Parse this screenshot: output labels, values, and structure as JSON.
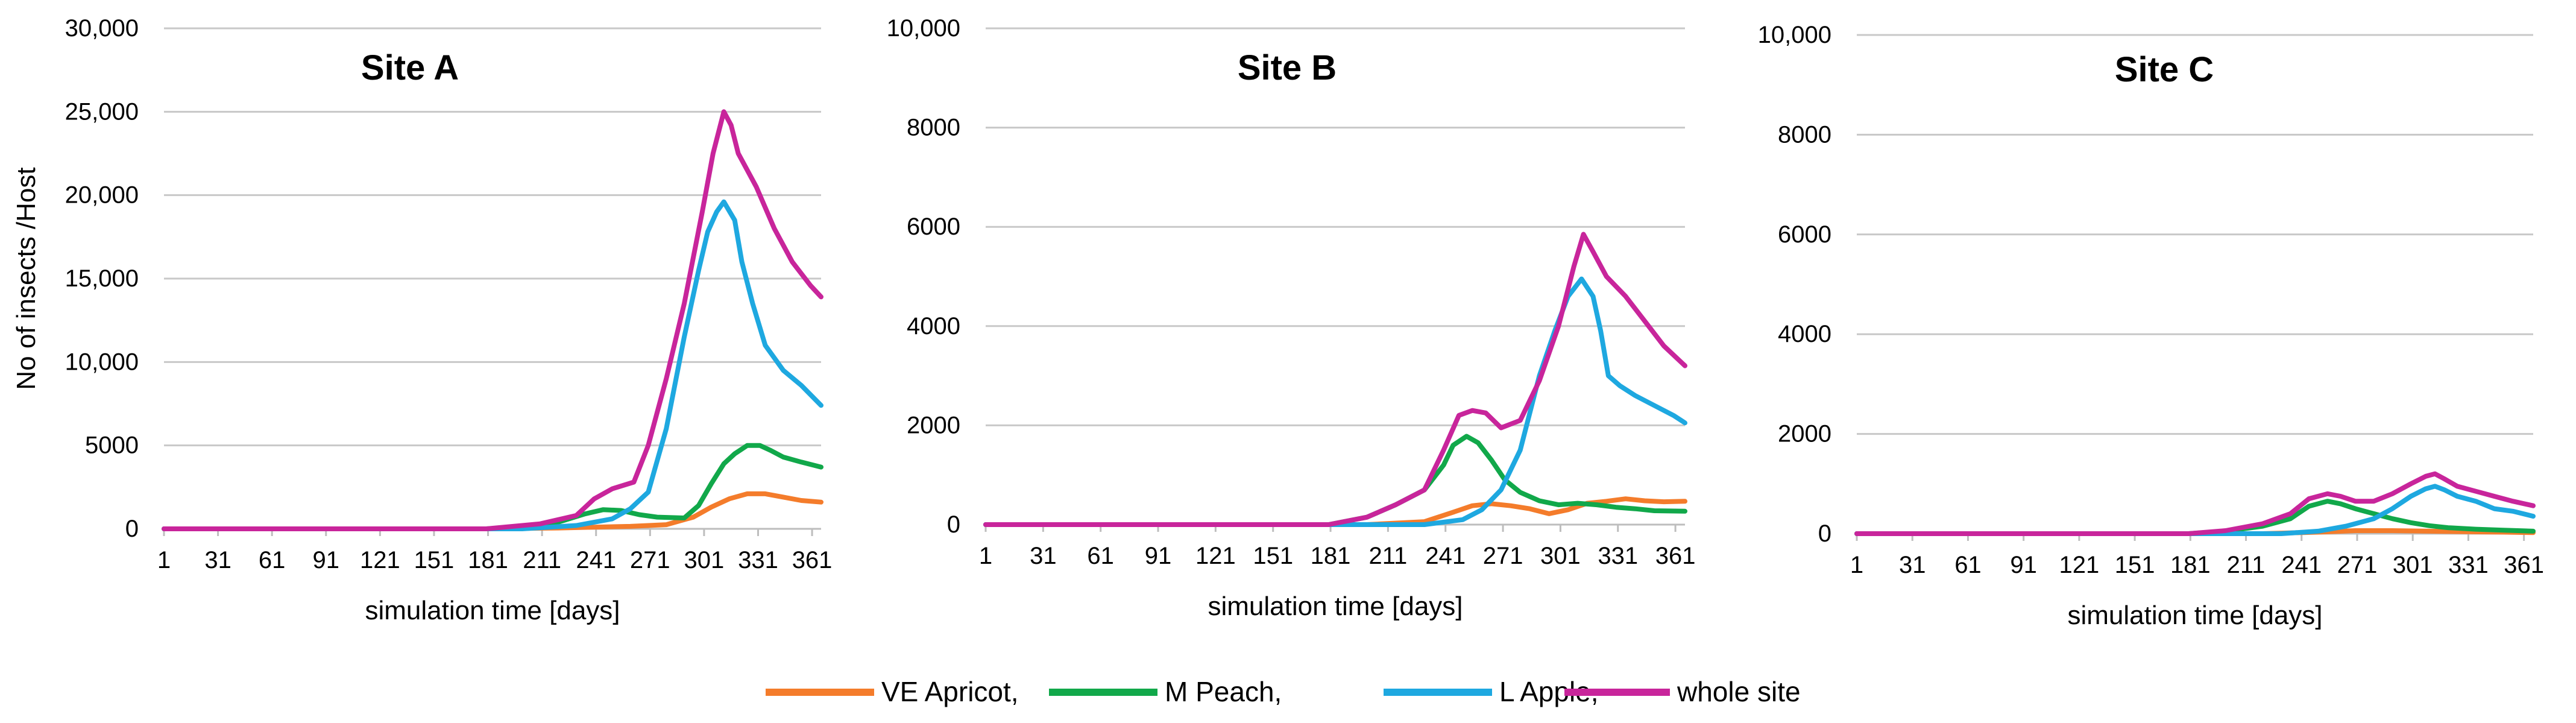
{
  "legend": [
    {
      "name": "VE Apricot,",
      "color": "#F47C2B"
    },
    {
      "name": "M Peach,",
      "color": "#11A84A"
    },
    {
      "name": "L Apple,",
      "color": "#1EA8E0"
    },
    {
      "name": "whole site",
      "color": "#C8259B"
    }
  ],
  "chart_data": [
    {
      "type": "line",
      "title": "Site A",
      "xlabel": "simulation time [days]",
      "ylabel": "No of insects /Host",
      "xlim": [
        1,
        366
      ],
      "ylim": [
        0,
        30000
      ],
      "x_ticks": [
        "1",
        "31",
        "61",
        "91",
        "121",
        "151",
        "181",
        "211",
        "241",
        "271",
        "301",
        "331",
        "361"
      ],
      "y_ticks": [
        {
          "value": 0,
          "label": "0"
        },
        {
          "value": 5000,
          "label": "5000"
        },
        {
          "value": 10000,
          "label": "10,000"
        },
        {
          "value": 15000,
          "label": "15,000"
        },
        {
          "value": 20000,
          "label": "20,000"
        },
        {
          "value": 25000,
          "label": "25,000"
        },
        {
          "value": 30000,
          "label": "30,000"
        }
      ],
      "grid": true,
      "series": [
        {
          "name": "VE Apricot",
          "color": "#F47C2B",
          "x": [
            1,
            180,
            220,
            240,
            260,
            280,
            295,
            305,
            315,
            325,
            335,
            345,
            355,
            366
          ],
          "y": [
            0,
            0,
            50,
            100,
            150,
            250,
            700,
            1300,
            1800,
            2100,
            2100,
            1900,
            1700,
            1600
          ]
        },
        {
          "name": "M Peach",
          "color": "#11A84A",
          "x": [
            1,
            180,
            200,
            220,
            235,
            245,
            255,
            265,
            275,
            290,
            298,
            305,
            312,
            318,
            325,
            332,
            338,
            345,
            355,
            366
          ],
          "y": [
            0,
            0,
            100,
            400,
            900,
            1150,
            1100,
            850,
            700,
            650,
            1400,
            2700,
            3900,
            4500,
            5000,
            5000,
            4700,
            4300,
            4000,
            3700
          ]
        },
        {
          "name": "L Apple",
          "color": "#1EA8E0",
          "x": [
            1,
            200,
            230,
            250,
            260,
            270,
            280,
            290,
            298,
            303,
            308,
            312,
            318,
            322,
            328,
            335,
            345,
            355,
            366
          ],
          "y": [
            0,
            0,
            200,
            600,
            1200,
            2200,
            6000,
            11500,
            15500,
            17800,
            19000,
            19600,
            18500,
            16000,
            13500,
            11000,
            9500,
            8600,
            7400
          ]
        },
        {
          "name": "whole site",
          "color": "#C8259B",
          "x": [
            1,
            180,
            210,
            230,
            240,
            250,
            262,
            270,
            280,
            290,
            300,
            306,
            312,
            316,
            320,
            330,
            340,
            350,
            360,
            366
          ],
          "y": [
            0,
            0,
            300,
            800,
            1800,
            2400,
            2800,
            5000,
            9000,
            13500,
            19000,
            22500,
            25000,
            24200,
            22500,
            20500,
            18000,
            16000,
            14600,
            13900
          ]
        }
      ]
    },
    {
      "type": "line",
      "title": "Site B",
      "xlabel": "simulation time [days]",
      "ylabel": "",
      "xlim": [
        1,
        366
      ],
      "ylim": [
        0,
        10000
      ],
      "x_ticks": [
        "1",
        "31",
        "61",
        "91",
        "121",
        "151",
        "181",
        "211",
        "241",
        "271",
        "301",
        "331",
        "361"
      ],
      "y_ticks": [
        {
          "value": 0,
          "label": "0"
        },
        {
          "value": 2000,
          "label": "2000"
        },
        {
          "value": 4000,
          "label": "4000"
        },
        {
          "value": 6000,
          "label": "6000"
        },
        {
          "value": 8000,
          "label": "8000"
        },
        {
          "value": 10000,
          "label": "10,000"
        }
      ],
      "grid": true,
      "series": [
        {
          "name": "VE Apricot",
          "color": "#F47C2B",
          "x": [
            1,
            200,
            230,
            245,
            255,
            265,
            275,
            285,
            295,
            305,
            315,
            325,
            335,
            345,
            355,
            366
          ],
          "y": [
            0,
            0,
            60,
            250,
            380,
            420,
            380,
            320,
            220,
            300,
            430,
            470,
            520,
            480,
            460,
            470
          ]
        },
        {
          "name": "M Peach",
          "color": "#11A84A",
          "x": [
            1,
            180,
            200,
            215,
            230,
            240,
            245,
            252,
            258,
            265,
            272,
            280,
            290,
            300,
            310,
            320,
            330,
            340,
            350,
            366
          ],
          "y": [
            0,
            0,
            150,
            400,
            700,
            1200,
            1600,
            1780,
            1650,
            1300,
            900,
            650,
            480,
            400,
            430,
            400,
            350,
            320,
            280,
            270
          ]
        },
        {
          "name": "L Apple",
          "color": "#1EA8E0",
          "x": [
            1,
            230,
            250,
            260,
            270,
            280,
            290,
            298,
            305,
            312,
            318,
            322,
            326,
            332,
            340,
            350,
            360,
            366
          ],
          "y": [
            0,
            0,
            100,
            300,
            700,
            1500,
            3000,
            3900,
            4600,
            4950,
            4600,
            3900,
            3000,
            2800,
            2600,
            2400,
            2200,
            2050
          ]
        },
        {
          "name": "whole site",
          "color": "#C8259B",
          "x": [
            1,
            180,
            200,
            215,
            230,
            240,
            248,
            255,
            262,
            270,
            280,
            290,
            300,
            308,
            313,
            318,
            325,
            335,
            345,
            355,
            366
          ],
          "y": [
            0,
            0,
            150,
            400,
            700,
            1500,
            2200,
            2300,
            2250,
            1950,
            2100,
            2900,
            4000,
            5200,
            5850,
            5500,
            5000,
            4600,
            4100,
            3600,
            3200
          ]
        }
      ]
    },
    {
      "type": "line",
      "title": "Site C",
      "xlabel": "simulation time [days]",
      "ylabel": "",
      "xlim": [
        1,
        366
      ],
      "ylim": [
        0,
        10000
      ],
      "x_ticks": [
        "1",
        "31",
        "61",
        "91",
        "121",
        "151",
        "181",
        "211",
        "241",
        "271",
        "301",
        "331",
        "361"
      ],
      "y_ticks": [
        {
          "value": 0,
          "label": "0"
        },
        {
          "value": 2000,
          "label": "2000"
        },
        {
          "value": 4000,
          "label": "4000"
        },
        {
          "value": 6000,
          "label": "6000"
        },
        {
          "value": 8000,
          "label": "8000"
        },
        {
          "value": 10000,
          "label": "10,000"
        }
      ],
      "grid": true,
      "series": [
        {
          "name": "VE Apricot",
          "color": "#F47C2B",
          "x": [
            1,
            220,
            250,
            270,
            290,
            310,
            330,
            350,
            366
          ],
          "y": [
            0,
            0,
            30,
            60,
            60,
            50,
            40,
            30,
            20
          ]
        },
        {
          "name": "M Peach",
          "color": "#11A84A",
          "x": [
            1,
            180,
            200,
            220,
            235,
            245,
            255,
            262,
            270,
            280,
            290,
            300,
            310,
            320,
            335,
            350,
            366
          ],
          "y": [
            0,
            0,
            50,
            150,
            300,
            550,
            650,
            600,
            500,
            400,
            300,
            220,
            160,
            120,
            90,
            70,
            50
          ]
        },
        {
          "name": "L Apple",
          "color": "#1EA8E0",
          "x": [
            1,
            230,
            250,
            265,
            280,
            290,
            300,
            308,
            313,
            318,
            325,
            335,
            345,
            355,
            366
          ],
          "y": [
            0,
            0,
            50,
            150,
            300,
            500,
            750,
            900,
            950,
            880,
            750,
            650,
            500,
            450,
            350
          ]
        },
        {
          "name": "whole site",
          "color": "#C8259B",
          "x": [
            1,
            180,
            200,
            220,
            235,
            245,
            255,
            262,
            270,
            280,
            290,
            300,
            308,
            313,
            318,
            325,
            335,
            345,
            355,
            366
          ],
          "y": [
            0,
            0,
            60,
            200,
            400,
            700,
            800,
            750,
            650,
            650,
            800,
            1000,
            1150,
            1200,
            1100,
            950,
            850,
            750,
            650,
            560
          ]
        }
      ]
    }
  ]
}
